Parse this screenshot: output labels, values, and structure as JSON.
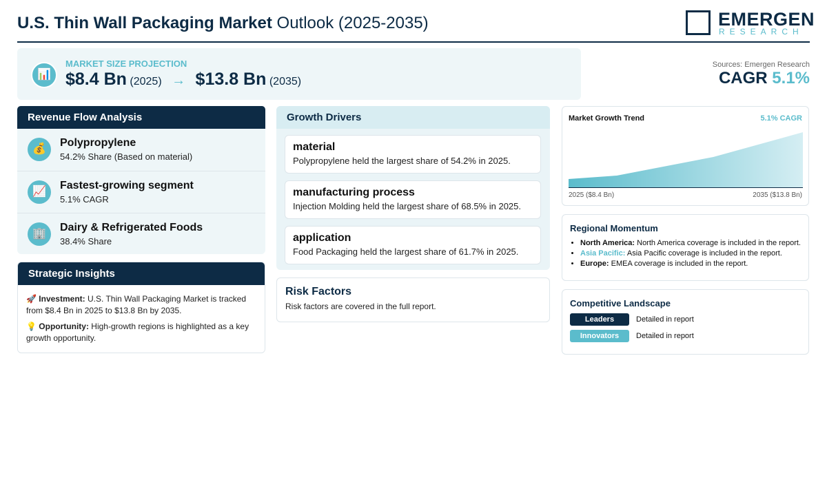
{
  "header": {
    "title_bold": "U.S. Thin Wall Packaging Market",
    "title_rest": "Outlook (2025-2035)",
    "logo_name": "EMERGEN",
    "logo_tagline": "RESEARCH"
  },
  "projection": {
    "icon": "📊",
    "label": "MARKET SIZE PROJECTION",
    "start_value": "$8.4 Bn",
    "start_year": "(2025)",
    "end_value": "$13.8 Bn",
    "end_year": "(2035)"
  },
  "cagr": {
    "source": "Sources: Emergen Research",
    "label": "CAGR",
    "value": "5.1%"
  },
  "revenue_flow": {
    "title": "Revenue Flow Analysis",
    "items": [
      {
        "icon": "💰",
        "name": "Polypropylene",
        "detail": "54.2% Share (Based on material)"
      },
      {
        "icon": "📈",
        "name": "Fastest-growing segment",
        "detail": "5.1% CAGR"
      },
      {
        "icon": "🏢",
        "name": "Dairy & Refrigerated Foods",
        "detail": "38.4% Share"
      }
    ]
  },
  "strategic_insights": {
    "title": "Strategic Insights",
    "items": [
      {
        "icon": "🚀",
        "label": "Investment:",
        "text": "U.S. Thin Wall Packaging Market is tracked from $8.4 Bn in 2025 to $13.8 Bn by 2035."
      },
      {
        "icon": "💡",
        "label": "Opportunity:",
        "text": "High-growth regions is highlighted as a key growth opportunity."
      }
    ]
  },
  "growth_drivers": {
    "title": "Growth Drivers",
    "items": [
      {
        "name": "material",
        "text": "Polypropylene held the largest share of 54.2% in 2025."
      },
      {
        "name": "manufacturing process",
        "text": "Injection Molding held the largest share of 68.5% in 2025."
      },
      {
        "name": "application",
        "text": "Food Packaging held the largest share of 61.7% in 2025."
      }
    ]
  },
  "risk_factors": {
    "title": "Risk Factors",
    "text": "Risk factors are covered in the full report."
  },
  "growth_trend": {
    "title": "Market Growth Trend",
    "badge": "5.1% CAGR",
    "start_label": "2025 ($8.4 Bn)",
    "end_label": "2035 ($13.8 Bn)"
  },
  "regional_momentum": {
    "title": "Regional Momentum",
    "items": [
      {
        "name": "North America:",
        "text": "North America coverage is included in the report."
      },
      {
        "name": "Asia Pacific:",
        "text": "Asia Pacific coverage is included in the report."
      },
      {
        "name": "Europe:",
        "text": "EMEA coverage is included in the report."
      }
    ]
  },
  "competitive_landscape": {
    "title": "Competitive Landscape",
    "items": [
      {
        "tag": "Leaders",
        "text": "Detailed in report"
      },
      {
        "tag": "Innovators",
        "text": "Detailed in report"
      }
    ]
  }
}
